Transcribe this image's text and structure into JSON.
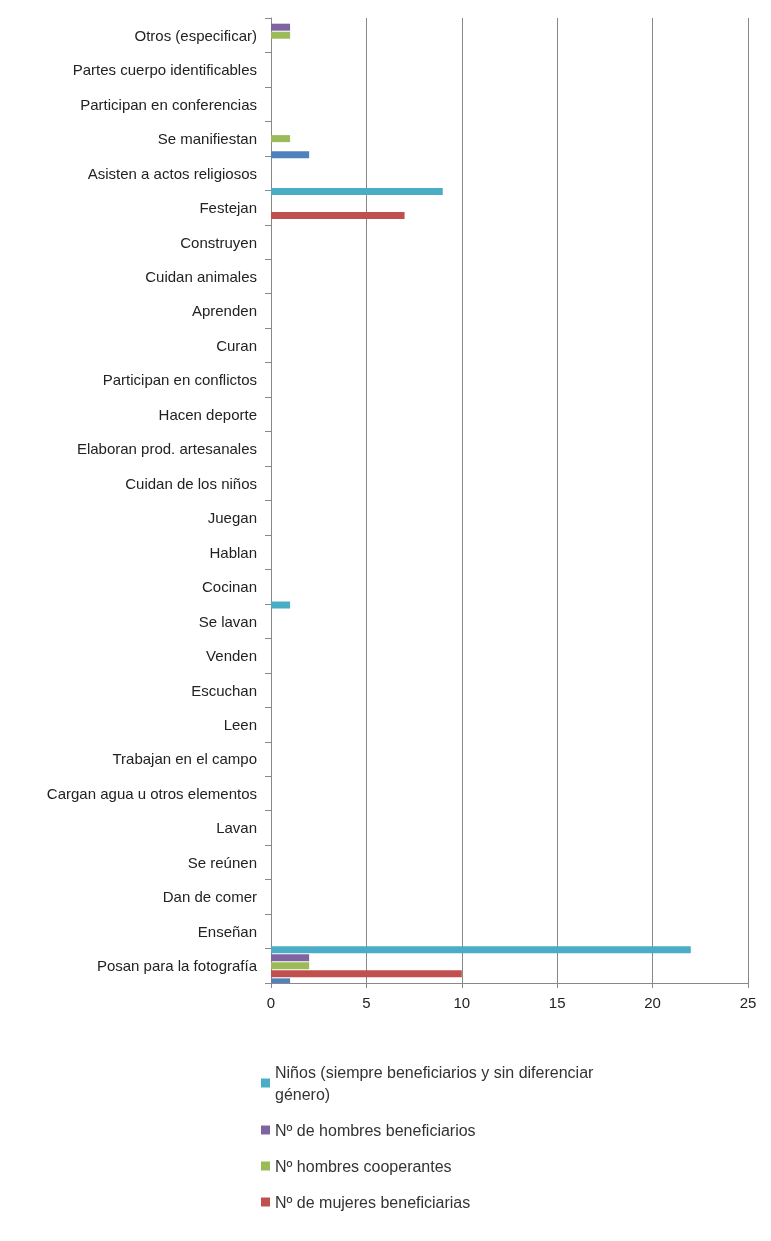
{
  "chart_data": {
    "type": "bar",
    "orientation": "horizontal",
    "categories": [
      "Otros (especificar)",
      "Partes cuerpo identificables",
      "Participan en conferencias",
      "Se manifiestan",
      "Asisten a actos religiosos",
      "Festejan",
      "Construyen",
      "Cuidan animales",
      "Aprenden",
      "Curan",
      "Participan en conflictos",
      "Hacen deporte",
      "Elaboran prod. artesanales",
      "Cuidan de los niños",
      "Juegan",
      "Hablan",
      "Cocinan",
      "Se lavan",
      "Venden",
      "Escuchan",
      "Leen",
      "Trabajan en el campo",
      "Cargan agua u otros elementos",
      "Lavan",
      "Se reúnen",
      "Dan de comer",
      "Enseñan",
      "Posan para la fotografía"
    ],
    "series": [
      {
        "name": "Niños (siempre beneficiarios y sin diferenciar género)",
        "color": "#4bacc6",
        "values": [
          0,
          0,
          0,
          0,
          0,
          9,
          0,
          0,
          0,
          0,
          0,
          0,
          0,
          0,
          0,
          0,
          0,
          1,
          0,
          0,
          0,
          0,
          0,
          0,
          0,
          0,
          0,
          22
        ]
      },
      {
        "name": "Nº de hombres beneficiarios",
        "color": "#8064a2",
        "values": [
          1,
          0,
          0,
          0,
          0,
          0,
          0,
          0,
          0,
          0,
          0,
          0,
          0,
          0,
          0,
          0,
          0,
          0,
          0,
          0,
          0,
          0,
          0,
          0,
          0,
          0,
          0,
          2
        ]
      },
      {
        "name": "Nº hombres cooperantes",
        "color": "#9bbb59",
        "values": [
          1,
          0,
          0,
          1,
          0,
          0,
          0,
          0,
          0,
          0,
          0,
          0,
          0,
          0,
          0,
          0,
          0,
          0,
          0,
          0,
          0,
          0,
          0,
          0,
          0,
          0,
          0,
          2
        ]
      },
      {
        "name": "Nº de mujeres beneficiarias",
        "color": "#c0504d",
        "values": [
          0,
          0,
          0,
          0,
          0,
          7,
          0,
          0,
          0,
          0,
          0,
          0,
          0,
          0,
          0,
          0,
          0,
          0,
          0,
          0,
          0,
          0,
          0,
          0,
          0,
          0,
          0,
          10
        ]
      },
      {
        "color": "#4f81bd",
        "values": [
          0,
          0,
          0,
          2,
          0,
          0,
          0,
          0,
          0,
          0,
          0,
          0,
          0,
          0,
          0,
          0,
          0,
          0,
          0,
          0,
          0,
          0,
          0,
          0,
          0,
          0,
          0,
          1
        ]
      }
    ],
    "xlim": [
      0,
      25
    ],
    "xticks": [
      0,
      5,
      10,
      15,
      20,
      25
    ],
    "grid": "x",
    "legend": "bottom"
  }
}
